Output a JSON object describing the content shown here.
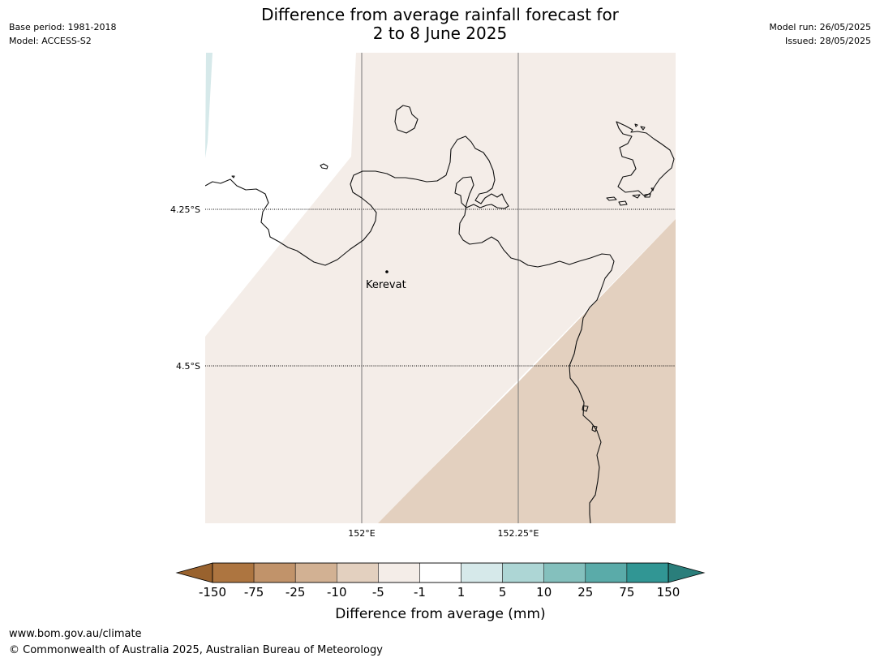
{
  "header": {
    "title_line1": "Difference from average rainfall forecast for",
    "title_line2": "2 to 8 June 2025",
    "base_period": "Base period: 1981-2018",
    "model": "Model: ACCESS-S2",
    "model_run": "Model run: 26/05/2025",
    "issued": "Issued: 28/05/2025"
  },
  "map": {
    "latitude_labels": [
      "4.25°S",
      "4.5°S"
    ],
    "longitude_labels": [
      "152°E",
      "152.25°E"
    ],
    "place": {
      "name": "Kerevat"
    },
    "category_colors": {
      "minus_1_to_minus_5": "#f4ede8",
      "minus_5_to_minus_10": "#e3d0bf",
      "plus_1_to_plus_5": "#d6e9ea",
      "below_minus_150": "#99622e",
      "above_150": "#2a7e7b"
    }
  },
  "colorbar": {
    "title": "Difference from average (mm)",
    "ticks": [
      "-150",
      "-75",
      "-25",
      "-10",
      "-5",
      "-1",
      "1",
      "5",
      "10",
      "25",
      "75",
      "150"
    ],
    "colors": [
      "#ad7540",
      "#c1936a",
      "#d2b193",
      "#e3d0bf",
      "#f4ede8",
      "#ffffff",
      "#d6e9ea",
      "#add6d5",
      "#84c0bd",
      "#5aaba9",
      "#319694"
    ],
    "under_color": "#99622e",
    "over_color": "#2a7e7b"
  },
  "footer": {
    "url": "www.bom.gov.au/climate",
    "copyright": "© Commonwealth of Australia 2025, Australian Bureau of Meteorology"
  }
}
